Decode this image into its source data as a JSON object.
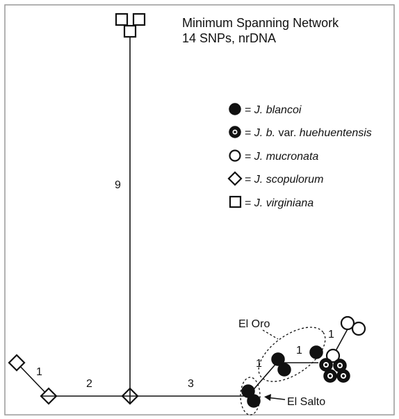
{
  "title": [
    "Minimum Spanning Network",
    "14 SNPs, nrDNA"
  ],
  "legend": [
    [
      {
        "text": "= "
      },
      {
        "text": "J. blancoi",
        "italic": true
      }
    ],
    [
      {
        "text": "= "
      },
      {
        "text": "J. b.",
        "italic": true
      },
      {
        "text": " var. "
      },
      {
        "text": "huehuentensis",
        "italic": true
      }
    ],
    [
      {
        "text": "= "
      },
      {
        "text": "J. mucronata",
        "italic": true
      }
    ],
    [
      {
        "text": "= "
      },
      {
        "text": "J. scopulorum",
        "italic": true
      }
    ],
    [
      {
        "text": "= "
      },
      {
        "text": "J. virginiana",
        "italic": true
      }
    ]
  ],
  "edges": [
    {
      "label": 9
    },
    {
      "label": 1
    },
    {
      "label": 2
    },
    {
      "label": 3
    },
    {
      "label": 1
    },
    {
      "label": 1
    },
    {
      "label": 1
    }
  ],
  "sites": [
    "El Oro",
    "El Salto"
  ]
}
